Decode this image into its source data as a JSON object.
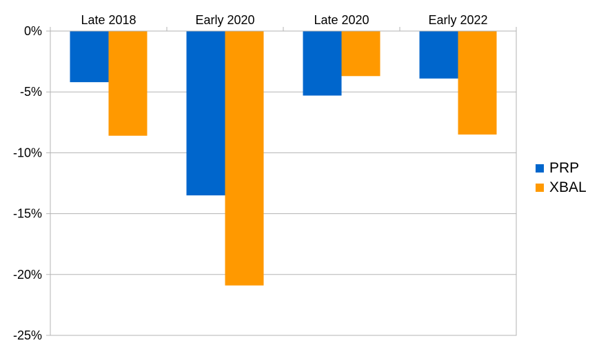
{
  "chart_data": {
    "type": "bar",
    "categories": [
      "Late 2018",
      "Early 2020",
      "Late 2020",
      "Early 2022"
    ],
    "series": [
      {
        "name": "PRP",
        "color": "#0066cc",
        "values": [
          -4.2,
          -13.5,
          -5.3,
          -3.9
        ]
      },
      {
        "name": "XBAL",
        "color": "#ff9900",
        "values": [
          -8.6,
          -20.9,
          -3.7,
          -8.5
        ]
      }
    ],
    "yticks": [
      "0%",
      "-5%",
      "-10%",
      "-15%",
      "-20%",
      "-25%"
    ],
    "ytick_values": [
      0,
      -5,
      -10,
      -15,
      -20,
      -25
    ],
    "ylim": [
      -25,
      0
    ],
    "title": "",
    "xlabel": "",
    "ylabel": "",
    "grid": true,
    "category_labels_position": "top",
    "legend_position": "right"
  }
}
